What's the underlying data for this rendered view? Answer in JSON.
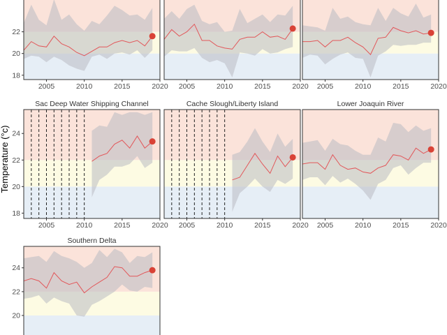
{
  "figure": {
    "ylabel": "Temperature (°c)",
    "colors": {
      "band_high": "#fbe3da",
      "band_mid": "#fdfbe3",
      "band_low": "#e6eef6",
      "ribbon": "#b9bcc3",
      "line": "#e2575a",
      "point": "#d94236",
      "text": "#333333",
      "tick_text": "#4d4d4d",
      "frame": "#333333",
      "vline": "#222222"
    }
  },
  "chart_data": [
    {
      "type": "line",
      "title": "",
      "xlim": [
        2002,
        2020
      ],
      "ylim": [
        17.6,
        25.7
      ],
      "bands": [
        [
          17.6,
          20
        ],
        [
          20,
          22
        ],
        [
          22,
          25.7
        ]
      ],
      "x_ticks": [
        2005,
        2010,
        2015,
        2020
      ],
      "y_ticks": [
        18,
        20,
        22
      ],
      "x": [
        2002,
        2003,
        2004,
        2005,
        2006,
        2007,
        2008,
        2009,
        2010,
        2011,
        2012,
        2013,
        2014,
        2015,
        2016,
        2017,
        2018,
        2019
      ],
      "mean": [
        20.3,
        21.1,
        20.7,
        20.6,
        21.6,
        20.9,
        20.6,
        20.1,
        19.8,
        20.2,
        20.6,
        20.6,
        21.0,
        21.2,
        21.0,
        21.2,
        20.7,
        21.6
      ],
      "lower": [
        19.5,
        19.8,
        19.7,
        19.2,
        19.7,
        19.4,
        18.9,
        18.6,
        18.4,
        19.7,
        19.9,
        19.5,
        20.0,
        20.1,
        19.9,
        20.3,
        19.6,
        20.3
      ],
      "upper": [
        22.8,
        24.5,
        23.1,
        22.6,
        25.0,
        23.1,
        23.6,
        22.7,
        22.1,
        23.0,
        22.7,
        23.5,
        24.4,
        24.0,
        23.5,
        23.6,
        23.1,
        24.2
      ],
      "last_point": {
        "x": 2019,
        "y": 21.6
      },
      "vlines": []
    },
    {
      "type": "line",
      "title": "",
      "xlim": [
        2002,
        2020
      ],
      "ylim": [
        17.6,
        25.7
      ],
      "bands": [
        [
          17.6,
          20
        ],
        [
          20,
          22
        ],
        [
          22,
          25.7
        ]
      ],
      "x_ticks": [
        2005,
        2010,
        2015,
        2020
      ],
      "y_ticks": [],
      "x": [
        2002,
        2003,
        2004,
        2005,
        2006,
        2007,
        2008,
        2009,
        2010,
        2011,
        2012,
        2013,
        2014,
        2015,
        2016,
        2017,
        2018,
        2019
      ],
      "mean": [
        21.3,
        22.2,
        21.6,
        22.0,
        22.7,
        21.2,
        21.2,
        20.7,
        20.5,
        20.4,
        21.3,
        21.5,
        21.5,
        22.0,
        21.5,
        21.6,
        21.3,
        22.3
      ],
      "lower": [
        19.7,
        20.3,
        20.2,
        20.2,
        20.5,
        19.6,
        19.2,
        19.4,
        19.1,
        17.8,
        20.1,
        20.0,
        19.8,
        20.4,
        20.0,
        20.1,
        20.4,
        20.6
      ],
      "upper": [
        23.2,
        23.9,
        23.2,
        24.1,
        24.5,
        23.0,
        22.7,
        22.9,
        22.0,
        22.1,
        24.1,
        22.8,
        23.2,
        23.6,
        22.9,
        23.6,
        23.5,
        24.4
      ],
      "last_point": {
        "x": 2019,
        "y": 22.3
      },
      "vlines": []
    },
    {
      "type": "line",
      "title": "",
      "xlim": [
        2002,
        2020
      ],
      "ylim": [
        17.6,
        25.7
      ],
      "bands": [
        [
          17.6,
          20
        ],
        [
          20,
          22
        ],
        [
          22,
          25.7
        ]
      ],
      "x_ticks": [
        2005,
        2010,
        2015,
        2020
      ],
      "y_ticks": [],
      "x": [
        2002,
        2003,
        2004,
        2005,
        2006,
        2007,
        2008,
        2009,
        2010,
        2011,
        2012,
        2013,
        2014,
        2015,
        2016,
        2017,
        2018,
        2019
      ],
      "mean": [
        21.1,
        21.1,
        21.2,
        20.6,
        21.2,
        21.2,
        21.5,
        21.0,
        20.6,
        19.9,
        21.4,
        21.5,
        22.4,
        22.1,
        21.9,
        22.1,
        21.8,
        21.9
      ],
      "lower": [
        19.6,
        19.9,
        19.8,
        19.0,
        19.5,
        19.9,
        20.1,
        19.6,
        19.5,
        17.8,
        19.8,
        20.2,
        20.8,
        20.7,
        20.8,
        20.8,
        21.0,
        21.0
      ],
      "upper": [
        22.6,
        22.5,
        22.4,
        22.1,
        24.2,
        23.2,
        23.4,
        22.9,
        22.7,
        22.6,
        24.2,
        23.0,
        24.2,
        23.7,
        23.4,
        24.6,
        23.3,
        23.6
      ],
      "last_point": {
        "x": 2019,
        "y": 21.9
      },
      "vlines": []
    },
    {
      "type": "line",
      "title": "Sac Deep Water Shipping Channel",
      "xlim": [
        2002,
        2020
      ],
      "ylim": [
        17.6,
        25.8
      ],
      "bands": [
        [
          17.6,
          20
        ],
        [
          20,
          22
        ],
        [
          22,
          25.8
        ]
      ],
      "x_ticks": [
        2005,
        2010,
        2015,
        2020
      ],
      "y_ticks": [
        18,
        20,
        22,
        24
      ],
      "x": [
        2011,
        2012,
        2013,
        2014,
        2015,
        2016,
        2017,
        2018,
        2019
      ],
      "mean": [
        21.9,
        22.3,
        22.5,
        23.2,
        23.5,
        22.9,
        23.8,
        22.9,
        23.4
      ],
      "lower": [
        19.2,
        20.5,
        20.9,
        21.5,
        21.5,
        21.7,
        22.3,
        21.4,
        21.8
      ],
      "upper": [
        24.2,
        24.6,
        24.5,
        25.6,
        25.4,
        25.6,
        25.6,
        25.4,
        25.6
      ],
      "last_point": {
        "x": 2019,
        "y": 23.4
      },
      "vlines": [
        2003,
        2004,
        2005,
        2006,
        2007,
        2008,
        2009,
        2010
      ]
    },
    {
      "type": "line",
      "title": "Cache Slough/Liberty Island",
      "xlim": [
        2002,
        2020
      ],
      "ylim": [
        17.6,
        25.8
      ],
      "bands": [
        [
          17.6,
          20
        ],
        [
          20,
          22
        ],
        [
          22,
          25.8
        ]
      ],
      "x_ticks": [
        2005,
        2010,
        2015,
        2020
      ],
      "y_ticks": [],
      "x": [
        2011,
        2012,
        2013,
        2014,
        2015,
        2016,
        2017,
        2018,
        2019
      ],
      "mean": [
        20.5,
        20.7,
        21.6,
        22.5,
        21.7,
        21.0,
        22.3,
        21.5,
        22.2
      ],
      "lower": [
        18.1,
        19.5,
        20.0,
        20.6,
        20.0,
        19.6,
        20.5,
        20.2,
        20.6
      ],
      "upper": [
        22.4,
        22.6,
        23.4,
        24.4,
        23.4,
        22.6,
        24.0,
        23.0,
        23.6
      ],
      "last_point": {
        "x": 2019,
        "y": 22.2
      },
      "vlines": [
        2003,
        2004,
        2005,
        2006,
        2007,
        2008,
        2009,
        2010
      ]
    },
    {
      "type": "line",
      "title": "Lower Joaquin River",
      "xlim": [
        2002,
        2020
      ],
      "ylim": [
        17.6,
        25.8
      ],
      "bands": [
        [
          17.6,
          20
        ],
        [
          20,
          22
        ],
        [
          22,
          25.8
        ]
      ],
      "x_ticks": [
        2005,
        2010,
        2015,
        2020
      ],
      "y_ticks": [],
      "x": [
        2002,
        2003,
        2004,
        2005,
        2006,
        2007,
        2008,
        2009,
        2010,
        2011,
        2012,
        2013,
        2014,
        2015,
        2016,
        2017,
        2018,
        2019
      ],
      "mean": [
        21.7,
        21.8,
        21.8,
        21.3,
        22.4,
        21.6,
        21.3,
        21.4,
        21.1,
        21.0,
        21.4,
        21.6,
        22.4,
        22.3,
        22.0,
        22.9,
        22.5,
        22.8
      ],
      "lower": [
        20.5,
        20.7,
        20.7,
        20.1,
        20.8,
        20.3,
        20.6,
        20.2,
        19.7,
        19.0,
        20.2,
        20.5,
        21.4,
        21.6,
        20.9,
        21.4,
        21.8,
        21.8
      ],
      "upper": [
        23.3,
        23.4,
        23.5,
        22.7,
        23.6,
        23.2,
        23.1,
        22.7,
        22.4,
        22.4,
        23.7,
        23.4,
        24.8,
        24.7,
        24.1,
        24.6,
        24.2,
        24.4
      ],
      "last_point": {
        "x": 2019,
        "y": 22.8
      },
      "vlines": []
    },
    {
      "type": "line",
      "title": "Southern Delta",
      "xlim": [
        2002,
        2020
      ],
      "ylim": [
        17.6,
        25.8
      ],
      "bands": [
        [
          17.6,
          20
        ],
        [
          20,
          22
        ],
        [
          22,
          25.8
        ]
      ],
      "x_ticks": [],
      "y_ticks": [
        20,
        22,
        24
      ],
      "x": [
        2002,
        2003,
        2004,
        2005,
        2006,
        2007,
        2008,
        2009,
        2010,
        2011,
        2012,
        2013,
        2014,
        2015,
        2016,
        2017,
        2018,
        2019
      ],
      "mean": [
        22.9,
        23.1,
        22.9,
        22.3,
        23.6,
        22.9,
        22.6,
        22.8,
        21.9,
        22.4,
        22.8,
        23.2,
        24.1,
        24.0,
        23.3,
        23.3,
        23.6,
        23.8
      ],
      "lower": [
        21.4,
        21.5,
        21.7,
        21.0,
        21.5,
        21.2,
        21.0,
        20.0,
        19.9,
        20.9,
        21.2,
        21.6,
        22.0,
        22.6,
        22.1,
        22.0,
        22.4,
        22.3
      ],
      "upper": [
        24.8,
        24.9,
        25.0,
        24.5,
        25.4,
        25.0,
        24.8,
        24.5,
        24.0,
        24.4,
        25.5,
        24.9,
        25.6,
        25.3,
        24.4,
        25.0,
        24.9,
        25.3
      ],
      "last_point": {
        "x": 2019,
        "y": 23.8
      },
      "vlines": []
    }
  ]
}
